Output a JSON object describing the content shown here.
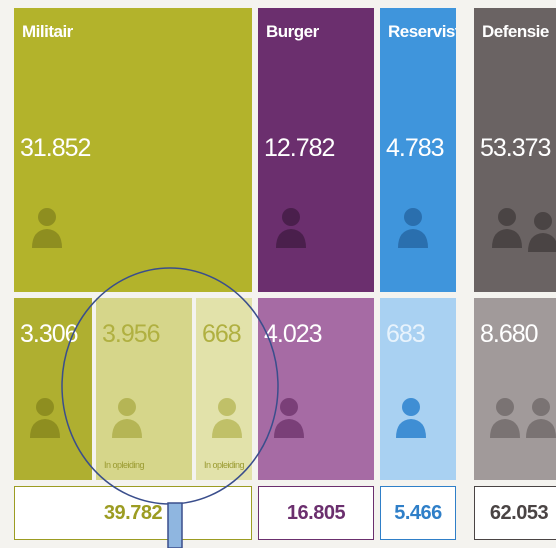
{
  "columns": [
    {
      "name": "Militair",
      "top": "31.852",
      "bottom": [
        {
          "value": "3.306"
        },
        {
          "value": "3.956",
          "note": "In opleiding"
        },
        {
          "value": "668",
          "note": "In opleiding"
        }
      ],
      "total": "39.782"
    },
    {
      "name": "Burger",
      "top": "12.782",
      "bottom": [
        {
          "value": "4.023"
        }
      ],
      "total": "16.805"
    },
    {
      "name": "Reservist",
      "top": "4.783",
      "bottom": [
        {
          "value": "683"
        }
      ],
      "total": "5.466"
    },
    {
      "name": "Defensie",
      "top": "53.373",
      "bottom": [
        {
          "value": "8.680"
        }
      ],
      "total": "62.053"
    }
  ]
}
